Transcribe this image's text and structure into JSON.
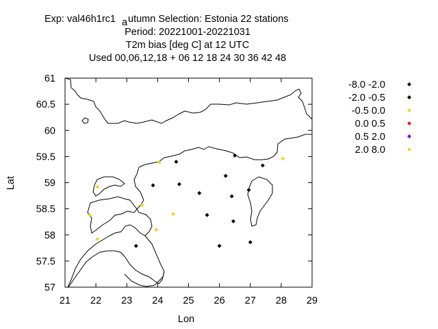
{
  "chart_data": {
    "type": "scatter",
    "title_lines": [
      "Exp: val46h1rc1",
      "Period: 20221001-20221031",
      "T2m bias [deg C] at  12 UTC",
      "Used  00,06,12,18  + 06 12 18 24 30 36 42 48"
    ],
    "title_subscript": "a",
    "title_line1_rest": "utumn    Selection: Estonia      22 stations",
    "xlabel": "Lon",
    "ylabel": "Lat",
    "xlim": [
      21,
      29
    ],
    "ylim": [
      57,
      61
    ],
    "xticks": [
      "21",
      "22",
      "23",
      "24",
      "25",
      "26",
      "27",
      "28",
      "29"
    ],
    "yticks": [
      "57",
      "57.5",
      "58",
      "58.5",
      "59",
      "59.5",
      "60",
      "60.5",
      "61"
    ],
    "legend_position": "right",
    "series": [
      {
        "name": "-8.0 -2.0",
        "color": "#000000",
        "points": [
          {
            "lon": 24.6,
            "lat": 59.4
          },
          {
            "lon": 26.2,
            "lat": 59.13
          },
          {
            "lon": 26.5,
            "lat": 59.52
          },
          {
            "lon": 27.4,
            "lat": 59.33
          },
          {
            "lon": 23.85,
            "lat": 58.95
          },
          {
            "lon": 24.7,
            "lat": 58.97
          },
          {
            "lon": 25.35,
            "lat": 58.8
          },
          {
            "lon": 26.4,
            "lat": 58.74
          },
          {
            "lon": 26.95,
            "lat": 58.86
          },
          {
            "lon": 25.6,
            "lat": 58.38
          },
          {
            "lon": 26.45,
            "lat": 58.26
          },
          {
            "lon": 23.3,
            "lat": 57.79
          },
          {
            "lon": 26.0,
            "lat": 57.79
          },
          {
            "lon": 27.0,
            "lat": 57.86
          }
        ]
      },
      {
        "name": "-2.0 -0.5",
        "color": "#000000",
        "points": []
      },
      {
        "name": "-0.5 0.0",
        "color": "#f2d32e",
        "points": [
          {
            "lon": 24.05,
            "lat": 59.39
          },
          {
            "lon": 28.05,
            "lat": 59.46
          },
          {
            "lon": 22.05,
            "lat": 58.92
          },
          {
            "lon": 23.5,
            "lat": 58.57
          },
          {
            "lon": 21.8,
            "lat": 58.38
          },
          {
            "lon": 24.5,
            "lat": 58.4
          },
          {
            "lon": 23.95,
            "lat": 58.1
          },
          {
            "lon": 22.05,
            "lat": 57.92
          }
        ]
      },
      {
        "name": "0.0 0.5",
        "color": "#d62020",
        "points": []
      },
      {
        "name": "0.5 2.0",
        "color": "#8b00d9",
        "points": []
      },
      {
        "name": "2.0 8.0",
        "color": "#f2d32e",
        "points": []
      }
    ]
  }
}
